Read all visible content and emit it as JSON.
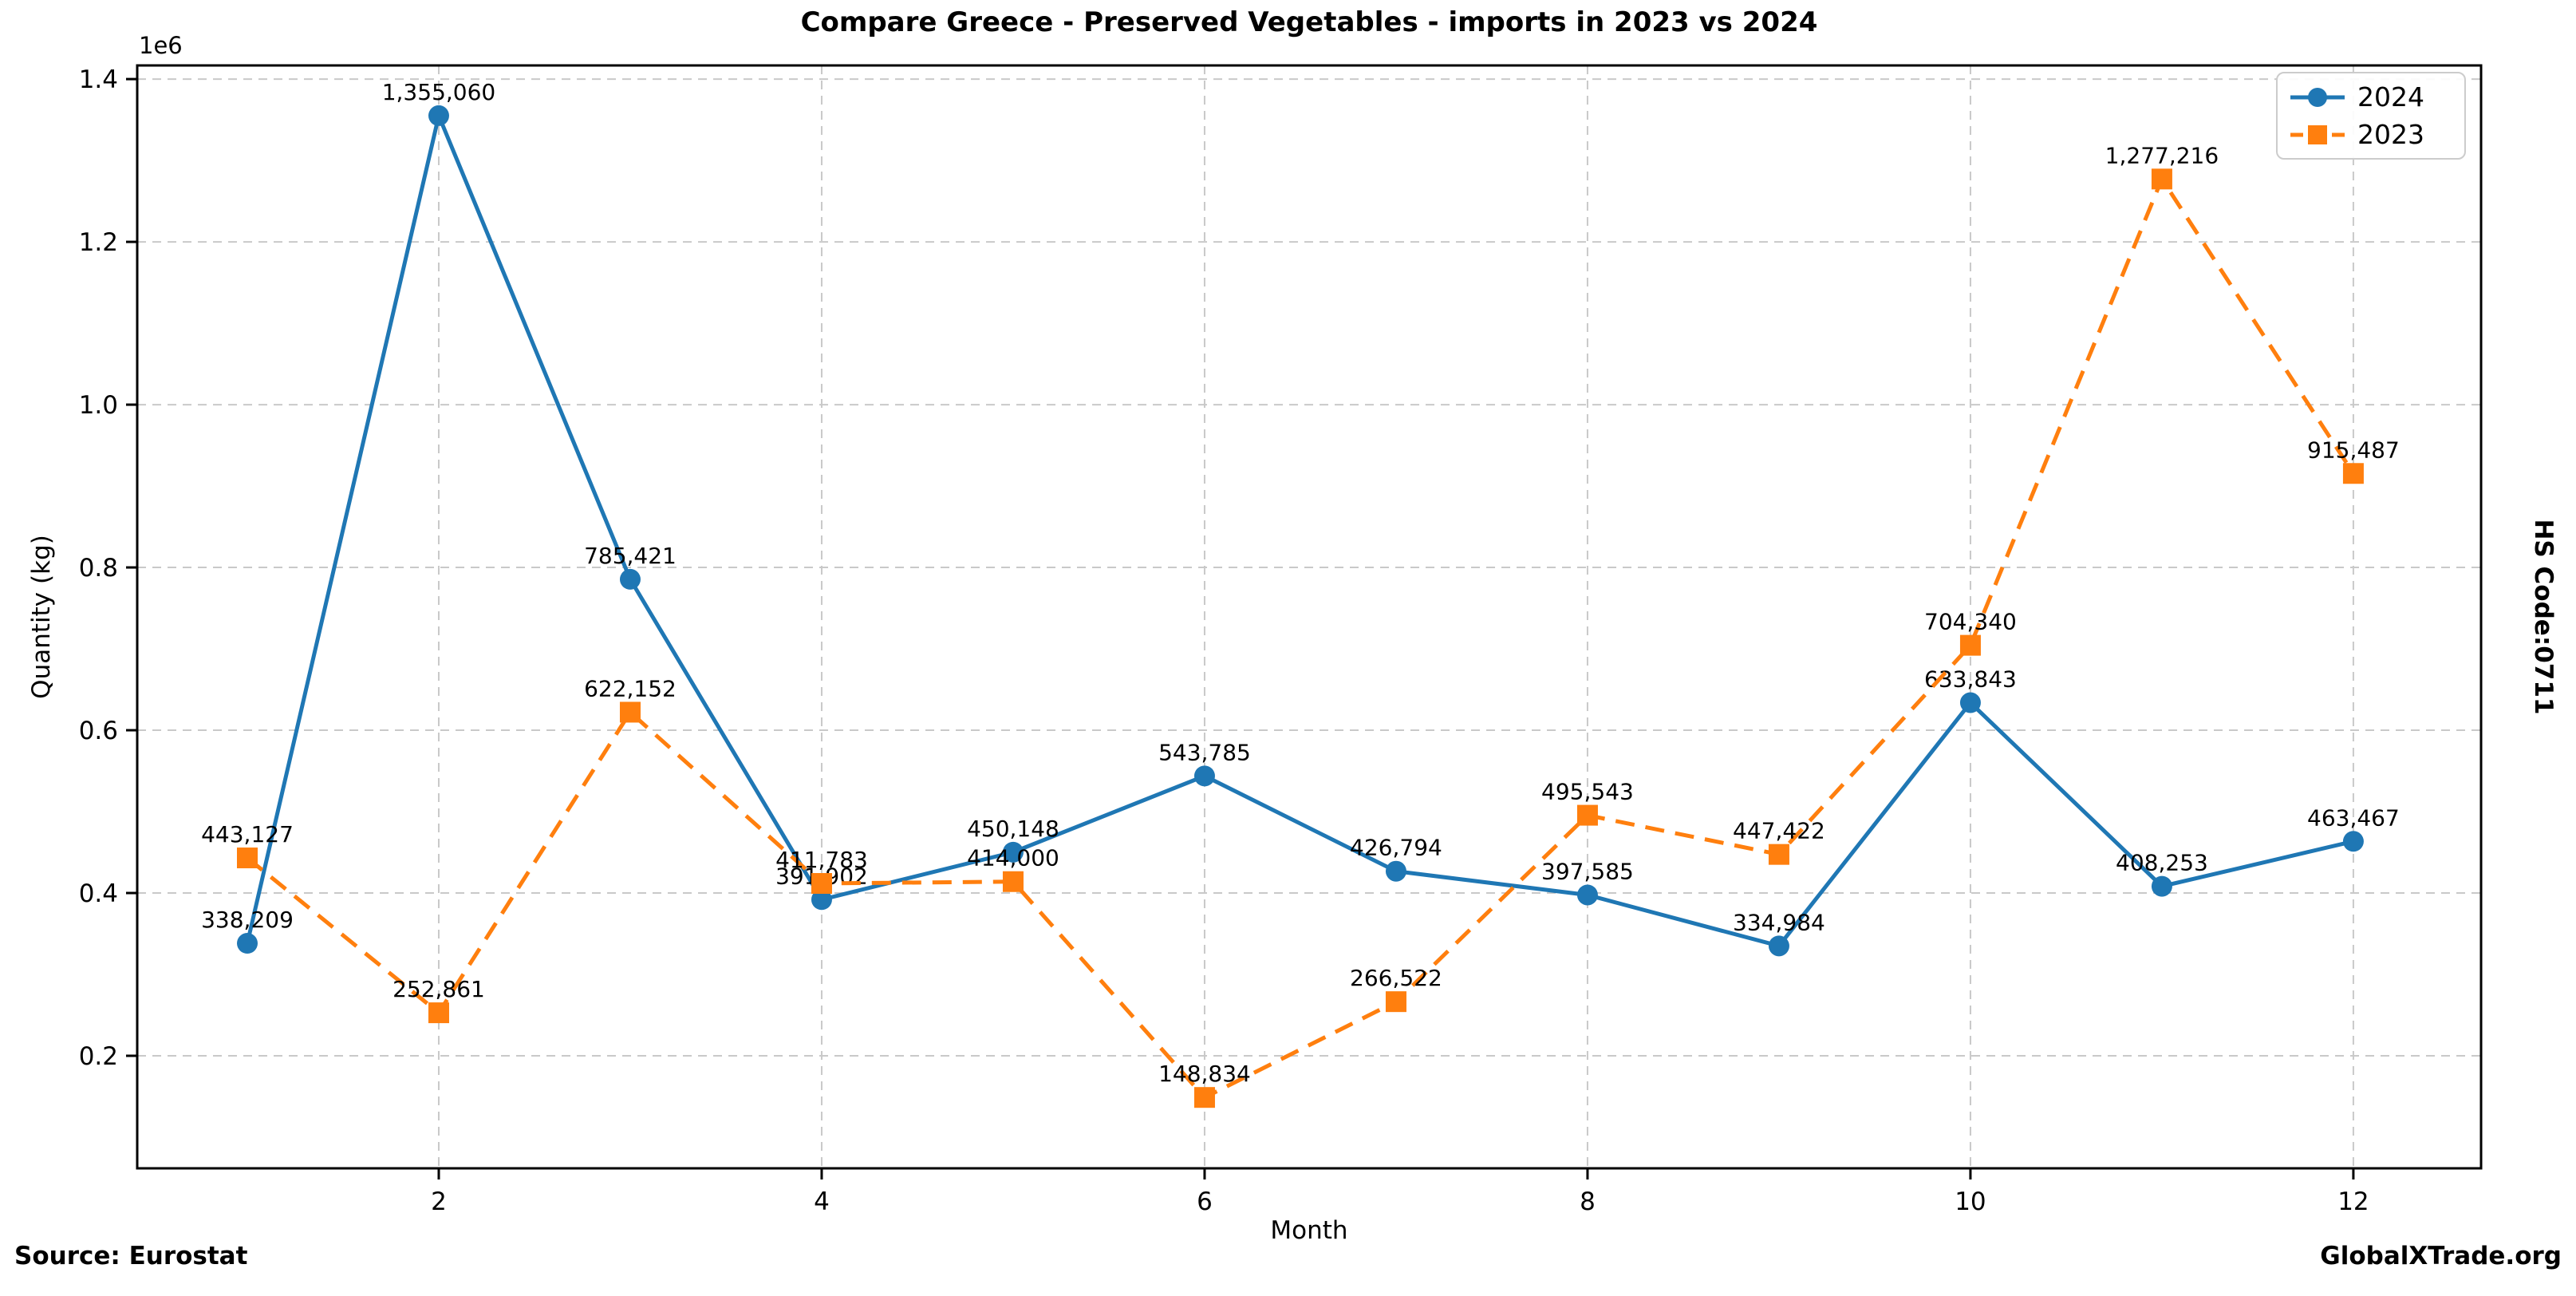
{
  "title": "Compare Greece - Preserved Vegetables - imports in 2023 vs 2024",
  "right_axis_label": "HS Code:0711",
  "footer": {
    "source": "Source: Eurostat",
    "brand": "GlobalXTrade.org"
  },
  "chart_data": {
    "type": "line",
    "title": "Compare Greece - Preserved Vegetables - imports in 2023 vs 2024",
    "xlabel": "Month",
    "ylabel": "Quantity (kg)",
    "offset_text": "1e6",
    "x": [
      1,
      2,
      3,
      4,
      5,
      6,
      7,
      8,
      9,
      10,
      11,
      12
    ],
    "xticks": [
      2,
      4,
      6,
      8,
      10,
      12
    ],
    "yticks": [
      200000,
      400000,
      600000,
      800000,
      1000000,
      1200000,
      1400000
    ],
    "ytick_labels": [
      "0.2",
      "0.4",
      "0.6",
      "0.8",
      "1.0",
      "1.2",
      "1.4"
    ],
    "xlim": [
      0.425,
      12.667
    ],
    "ylim": [
      61765,
      1416765
    ],
    "grid": true,
    "legend_position": "upper right",
    "series": [
      {
        "name": "2024",
        "color": "#1f77b4",
        "marker": "circle",
        "linestyle": "solid",
        "values": [
          338209,
          1355060,
          785421,
          391902,
          450148,
          543785,
          426794,
          397585,
          334984,
          633843,
          408253,
          463467
        ]
      },
      {
        "name": "2023",
        "color": "#ff7f0e",
        "marker": "square",
        "linestyle": "dashed",
        "values": [
          443127,
          252861,
          622152,
          411783,
          414000,
          148834,
          266522,
          495543,
          447422,
          704340,
          1277216,
          915487
        ]
      }
    ]
  }
}
